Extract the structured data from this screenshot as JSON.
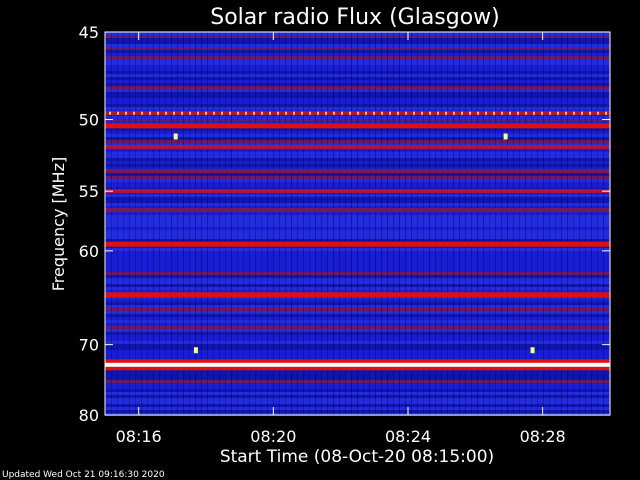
{
  "chart_data": {
    "type": "heatmap",
    "title": "Solar radio Flux (Glasgow)",
    "xlabel": "Start Time (08-Oct-20 08:15:00)",
    "ylabel": "Frequency [MHz]",
    "x_ticks": [
      "08:16",
      "08:20",
      "08:24",
      "08:28"
    ],
    "x_tick_minutes": [
      16,
      20,
      24,
      28
    ],
    "xlim_minutes": [
      15,
      30
    ],
    "y_ticks": [
      45,
      50,
      55,
      60,
      70,
      80
    ],
    "ylim": [
      45,
      80
    ],
    "y_scale": "reciprocal",
    "grid": false,
    "colors": {
      "background": "#000000",
      "low": "#1a1fd6",
      "mid": "#7a1a55",
      "high": "#e01010",
      "peak": "#ffff80"
    },
    "bands": [
      {
        "freq": 49.6,
        "level": 0.75,
        "dotted": true
      },
      {
        "freq": 50.4,
        "level": 0.88
      },
      {
        "freq": 51.8,
        "level": 0.7
      },
      {
        "freq": 53.5,
        "level": 0.55
      },
      {
        "freq": 55.0,
        "level": 0.72
      },
      {
        "freq": 56.5,
        "level": 0.55
      },
      {
        "freq": 59.4,
        "level": 0.9
      },
      {
        "freq": 64.3,
        "level": 0.98
      },
      {
        "freq": 72.6,
        "level": 1.0
      }
    ],
    "bursts": [
      {
        "minute": 17.1,
        "freq": 51.1
      },
      {
        "minute": 26.9,
        "freq": 51.1
      },
      {
        "minute": 17.7,
        "freq": 70.7
      },
      {
        "minute": 27.7,
        "freq": 70.7
      }
    ]
  },
  "footer": "Updated Wed Oct 21 09:16:30 2020"
}
